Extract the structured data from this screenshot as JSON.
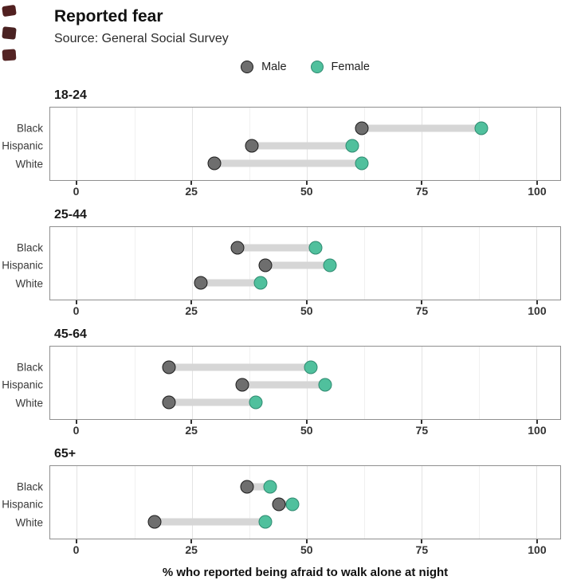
{
  "header": {
    "title": "Reported fear",
    "subtitle": "Source: General Social Survey"
  },
  "legend": [
    {
      "label": "Male",
      "color": "#6e6e6e",
      "border": "#1c1c1c"
    },
    {
      "label": "Female",
      "color": "#50c09d",
      "border": "#2e8a70"
    }
  ],
  "colors": {
    "male_fill": "#6e6e6e",
    "male_border": "#1c1c1c",
    "female_fill": "#50c09d",
    "female_border": "#2e8a70",
    "connector": "#d6d6d6",
    "panel_border": "#8f8f8f"
  },
  "chart_data": {
    "type": "dumbbell",
    "title": "Reported fear",
    "subtitle": "Source: General Social Survey",
    "xlabel": "% who reported being afraid to walk alone at night",
    "x_ticks": [
      0,
      25,
      50,
      75,
      100
    ],
    "x_minor_gridlines": [
      12.5,
      37.5,
      62.5,
      87.5
    ],
    "xlim": [
      -5.8,
      105.2
    ],
    "grid": "vertical-only",
    "legend_position": "top-center",
    "categories": [
      "Black",
      "Hispanic",
      "White"
    ],
    "series_names": [
      "Male",
      "Female"
    ],
    "panels": [
      {
        "title": "18-24",
        "rows": [
          {
            "label": "Black",
            "male": 62,
            "female": 88
          },
          {
            "label": "Hispanic",
            "male": 38,
            "female": 60
          },
          {
            "label": "White",
            "male": 30,
            "female": 62
          }
        ]
      },
      {
        "title": "25-44",
        "rows": [
          {
            "label": "Black",
            "male": 35,
            "female": 52
          },
          {
            "label": "Hispanic",
            "male": 41,
            "female": 55
          },
          {
            "label": "White",
            "male": 27,
            "female": 40
          }
        ]
      },
      {
        "title": "45-64",
        "rows": [
          {
            "label": "Black",
            "male": 20,
            "female": 51
          },
          {
            "label": "Hispanic",
            "male": 36,
            "female": 54
          },
          {
            "label": "White",
            "male": 20,
            "female": 39
          }
        ]
      },
      {
        "title": "65+",
        "rows": [
          {
            "label": "Black",
            "male": 37,
            "female": 42
          },
          {
            "label": "Hispanic",
            "male": 44,
            "female": 47
          },
          {
            "label": "White",
            "male": 17,
            "female": 41
          }
        ]
      }
    ]
  }
}
